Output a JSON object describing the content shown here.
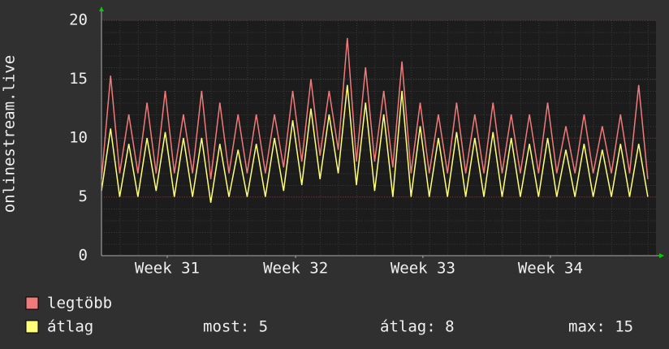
{
  "chart_data": {
    "type": "line",
    "y_label": "onlinestream.live",
    "x": [
      0,
      0.5,
      1,
      1.5,
      2,
      2.5,
      3,
      3.5,
      4,
      4.5,
      5,
      5.5,
      6,
      6.5,
      7,
      7.5,
      8,
      8.5,
      9,
      9.5,
      10,
      10.5,
      11,
      11.5,
      12,
      12.5,
      13,
      13.5,
      14,
      14.5,
      15,
      15.5,
      16,
      16.5,
      17,
      17.5,
      18,
      18.5,
      19,
      19.5,
      20,
      20.5,
      21,
      21.5,
      22,
      22.5,
      23,
      23.5,
      24,
      24.5,
      25,
      25.5,
      26,
      26.5,
      27,
      27.5,
      28,
      28.5,
      29,
      29.5,
      30
    ],
    "xlim": [
      0,
      30.45
    ],
    "xticks": [
      {
        "value": 3.61,
        "label": "Week 31"
      },
      {
        "value": 10.66,
        "label": "Week 32"
      },
      {
        "value": 17.65,
        "label": "Week 33"
      },
      {
        "value": 24.65,
        "label": "Week 34"
      }
    ],
    "ylim": [
      0,
      20
    ],
    "yticks": [
      0,
      5,
      10,
      15,
      20
    ],
    "grid": true,
    "series": [
      {
        "name": "legtöbb",
        "color": "#f07a7a",
        "values": [
          6.5,
          15.3,
          7,
          12,
          7,
          13,
          7,
          14,
          7,
          12,
          7,
          14,
          6.5,
          13,
          7,
          12,
          7,
          12,
          7,
          12,
          7.5,
          14,
          8,
          15,
          8.5,
          14,
          9,
          18.5,
          8,
          16,
          8,
          14,
          7.5,
          16.5,
          7,
          13,
          7,
          12,
          7,
          13,
          7,
          12,
          7,
          13,
          7,
          12,
          7,
          12,
          7,
          13,
          7,
          11,
          7,
          12,
          7,
          11,
          7,
          12,
          7,
          14.5,
          6.5
        ]
      },
      {
        "name": "átlag",
        "color": "#ffff7a",
        "values": [
          5.5,
          10.8,
          5,
          9.5,
          5,
          10,
          5.5,
          10.5,
          5,
          10,
          5,
          10,
          4.5,
          9.5,
          5,
          9,
          5,
          9.5,
          5,
          10,
          5.5,
          11.5,
          6,
          12.5,
          6.5,
          12,
          7,
          14.5,
          6,
          13,
          5.5,
          12,
          5,
          14,
          5,
          11,
          5,
          10,
          5,
          10.5,
          5,
          10,
          5,
          10.5,
          5,
          10,
          5,
          9.5,
          5,
          10,
          5,
          9,
          5,
          9.5,
          5,
          9,
          5,
          9.5,
          5,
          9.5,
          5
        ]
      }
    ],
    "stats": [
      "most: 5",
      "átlag: 8",
      "max: 15"
    ]
  }
}
